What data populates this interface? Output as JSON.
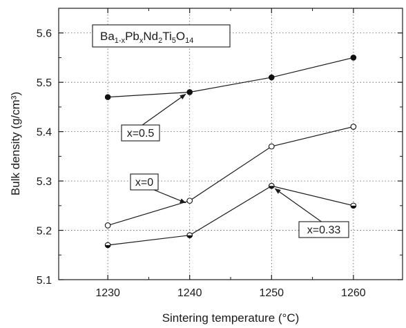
{
  "chart_data": {
    "type": "line",
    "title": "",
    "xlabel": "Sintering temperature (°C)",
    "ylabel": "Bulk density (g/cm³)",
    "xlim": [
      1224,
      1266
    ],
    "ylim": [
      5.1,
      5.65
    ],
    "xticks": [
      "1230",
      "1240",
      "1250",
      "1260"
    ],
    "yticks": [
      "5.1",
      "5.2",
      "5.3",
      "5.4",
      "5.5",
      "5.6"
    ],
    "grid": true,
    "x": [
      1230,
      1240,
      1250,
      1260
    ],
    "legend_box": {
      "parts": [
        {
          "t": "Ba",
          "s": "n"
        },
        {
          "t": "1-x",
          "s": "sub"
        },
        {
          "t": "Pb",
          "s": "n"
        },
        {
          "t": "x",
          "s": "sub"
        },
        {
          "t": "Nd",
          "s": "n"
        },
        {
          "t": "2",
          "s": "sub"
        },
        {
          "t": "Ti",
          "s": "n"
        },
        {
          "t": "5",
          "s": "sub"
        },
        {
          "t": "O",
          "s": "n"
        },
        {
          "t": "14",
          "s": "sub"
        }
      ]
    },
    "series": [
      {
        "name": "x=0.5",
        "marker": "filled",
        "values": [
          5.47,
          5.48,
          5.51,
          5.55
        ]
      },
      {
        "name": "x=0",
        "marker": "open",
        "values": [
          5.21,
          5.26,
          5.37,
          5.41
        ]
      },
      {
        "name": "x=0.33",
        "marker": "half",
        "values": [
          5.17,
          5.19,
          5.29,
          5.25
        ]
      }
    ],
    "annotations": [
      {
        "label": "x=0.5",
        "series": 0,
        "point": 1
      },
      {
        "label": "x=0",
        "series": 1,
        "point": 1
      },
      {
        "label": "x=0.33",
        "series": 2,
        "point": 2
      }
    ]
  }
}
